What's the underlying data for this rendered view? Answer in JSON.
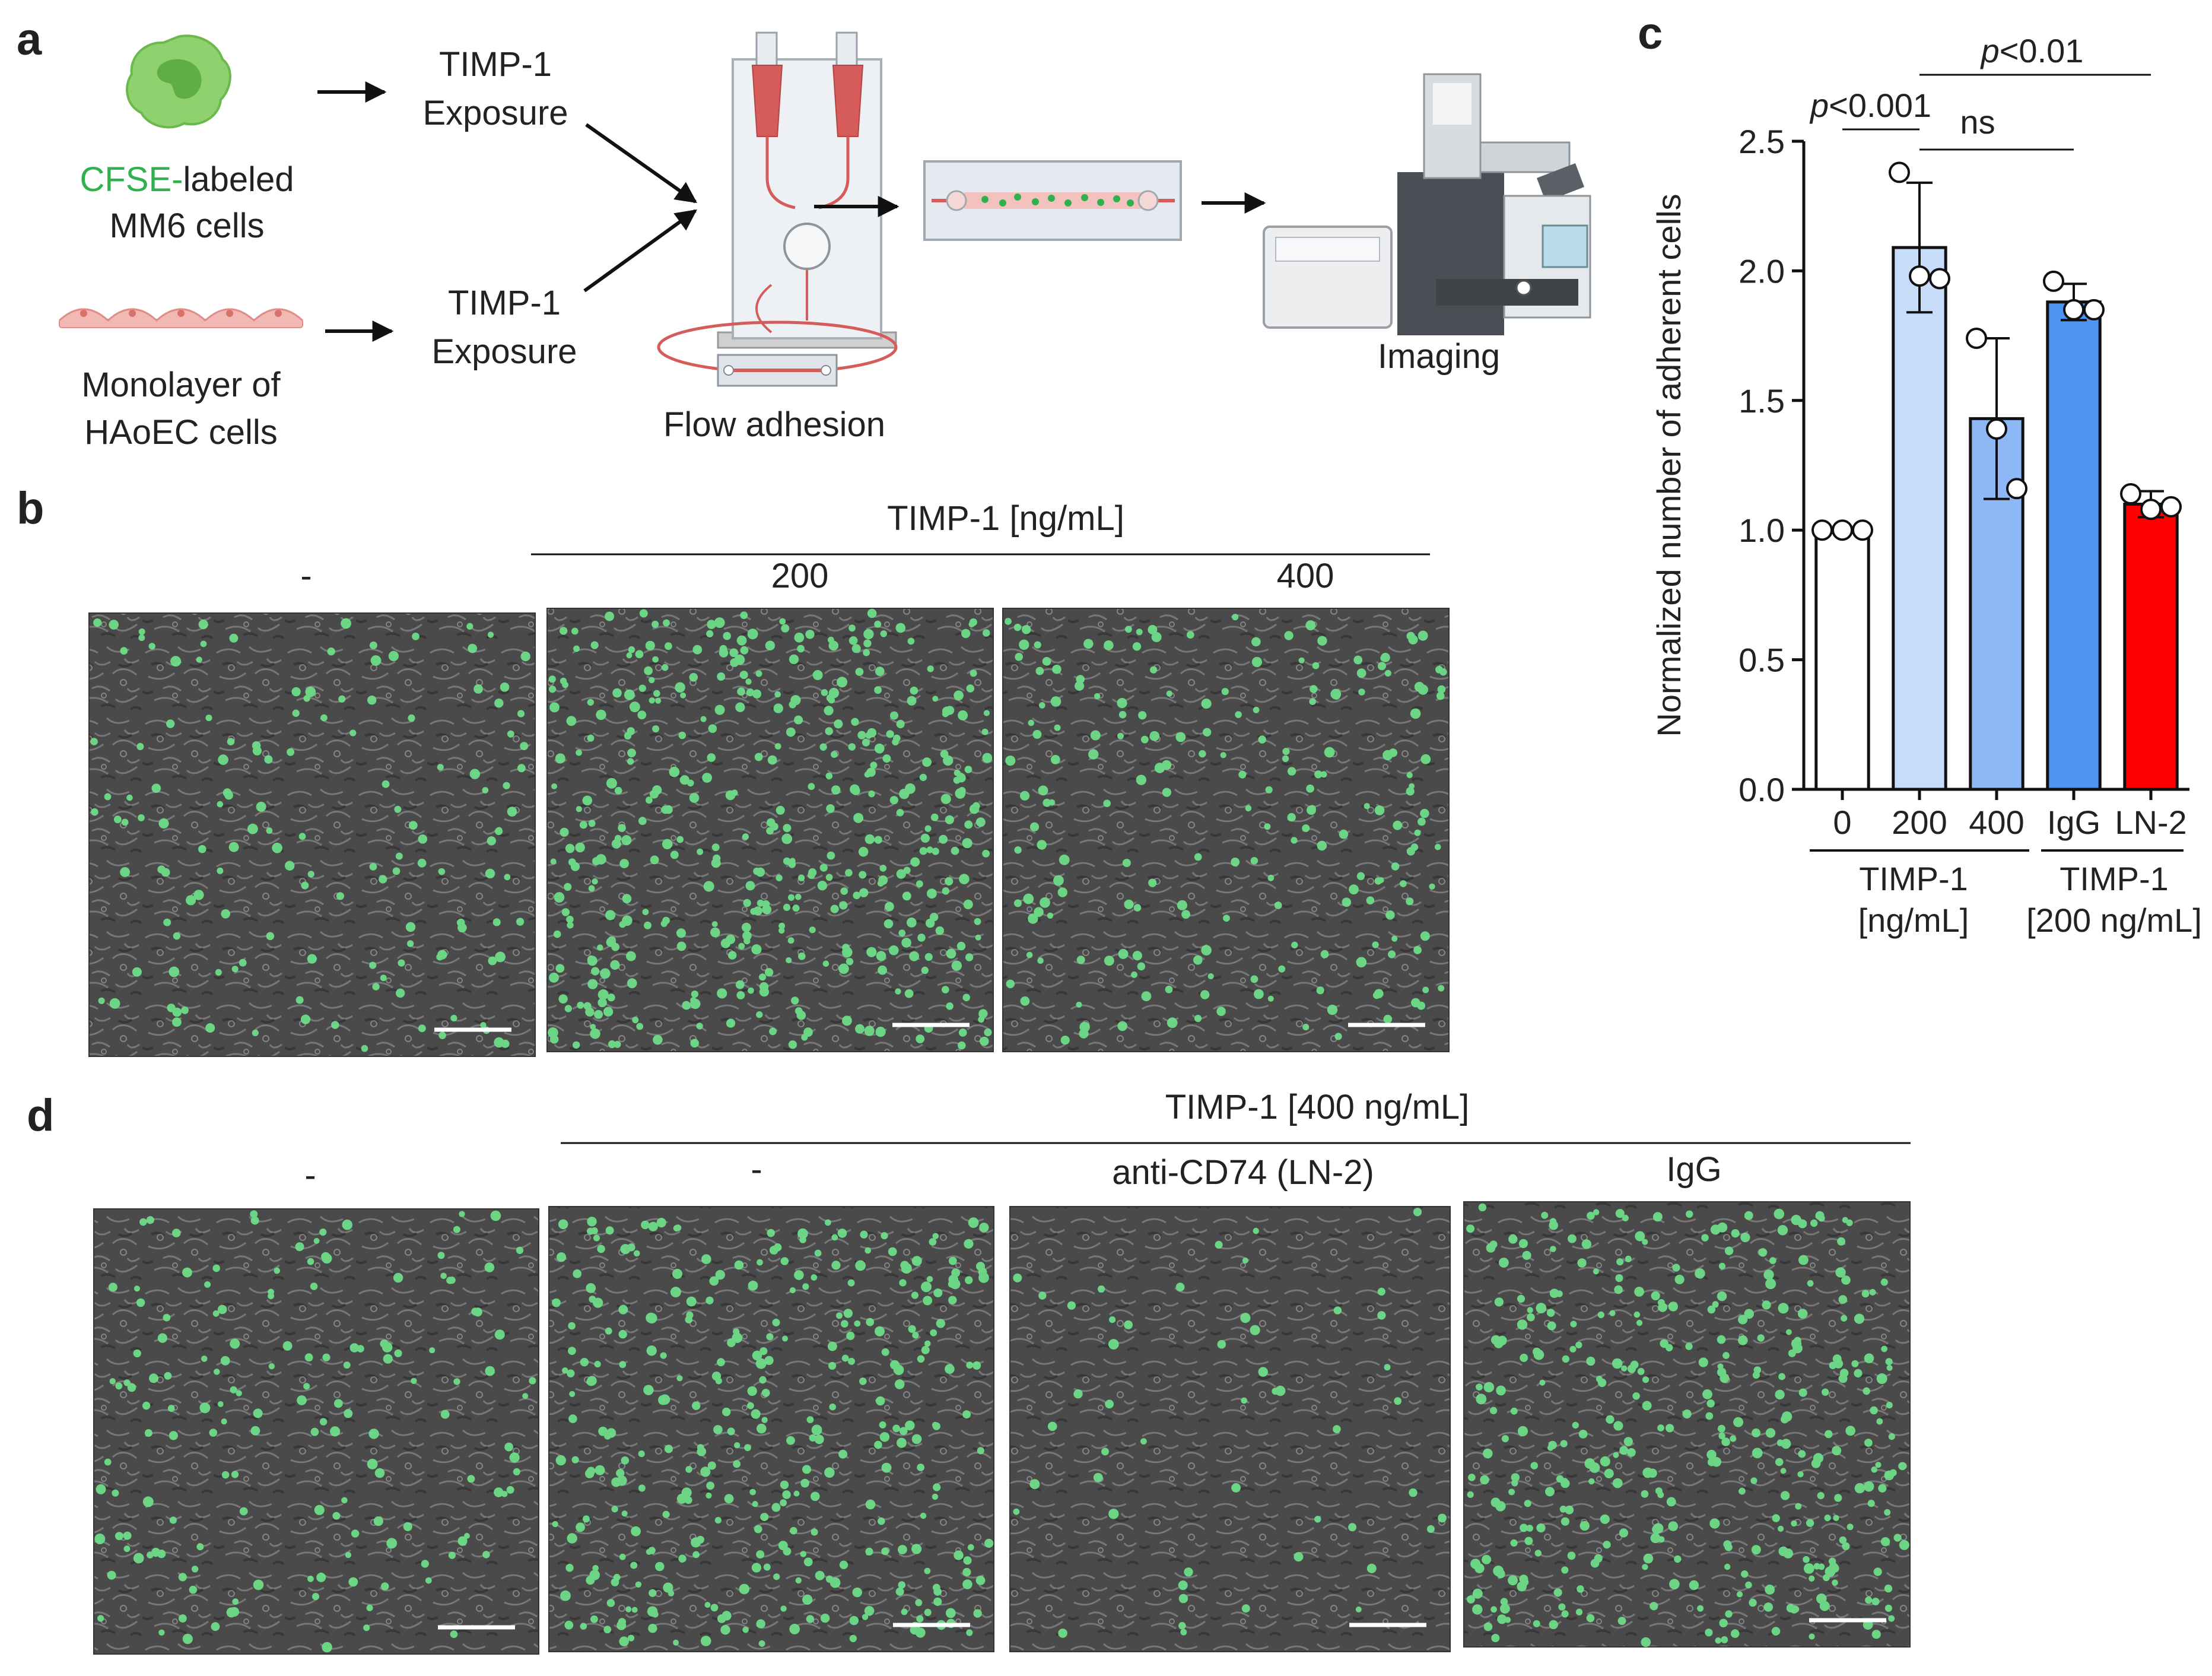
{
  "panel_a": {
    "letter": "a",
    "cells_label_prefix": "CFSE-",
    "cells_label_suffix": "labeled",
    "cells_label_line2": "MM6 cells",
    "monolayer_line1": "Monolayer of",
    "monolayer_line2": "HAoEC cells",
    "exposure1_line1": "TIMP-1",
    "exposure1_line2": "Exposure",
    "exposure2_line1": "TIMP-1",
    "exposure2_line2": "Exposure",
    "flow_label": "Flow adhesion",
    "imaging_label": "Imaging",
    "colors": {
      "cfse": "#2fb24d",
      "cell": "#8fd16f",
      "endothelial": "#f2b8b4",
      "tubing": "#d65c5c"
    },
    "icons": [
      "monocyte-cell-icon",
      "endothelial-monolayer-icon",
      "flow-chamber-icon",
      "flow-channel-slide-icon",
      "microscope-icon"
    ]
  },
  "panel_b": {
    "letter": "b",
    "group_label": "TIMP-1 [ng/mL]",
    "images": [
      {
        "label": "-",
        "density": 140
      },
      {
        "label": "200",
        "density": 420
      },
      {
        "label": "400",
        "density": 200
      }
    ]
  },
  "panel_c": {
    "letter": "c",
    "sig": [
      {
        "label_italic": "p",
        "label_rest": "<0.001"
      },
      {
        "label_italic": "",
        "label_rest": "ns"
      },
      {
        "label_italic": "p",
        "label_rest": "<0.01"
      }
    ],
    "group1_line1": "TIMP-1",
    "group1_line2": "[ng/mL]",
    "group2_line1": "TIMP-1",
    "group2_line2": "[200 ng/mL]"
  },
  "chart_data": {
    "type": "bar",
    "categories": [
      "0",
      "200",
      "400",
      "IgG",
      "LN-2"
    ],
    "values": [
      1.0,
      2.09,
      1.43,
      1.88,
      1.1
    ],
    "error": [
      0.0,
      0.25,
      0.31,
      0.07,
      0.05
    ],
    "points": [
      [
        1.0,
        1.0,
        1.0
      ],
      [
        2.38,
        1.98,
        1.97
      ],
      [
        1.74,
        1.39,
        1.16
      ],
      [
        1.96,
        1.85,
        1.85
      ],
      [
        1.14,
        1.08,
        1.09
      ]
    ],
    "colors": [
      "#ffffff",
      "#c7dcf9",
      "#8db8f5",
      "#4d94f2",
      "#ff0000"
    ],
    "ylabel": "Normalized number of adherent cells",
    "ylim": [
      0,
      2.5
    ],
    "yticks": [
      "0.0",
      "0.5",
      "1.0",
      "1.5",
      "2.0",
      "2.5"
    ],
    "grid": false
  },
  "panel_d": {
    "letter": "d",
    "group_label": "TIMP-1 [400 ng/mL]",
    "images": [
      {
        "label": "-",
        "density": 150
      },
      {
        "label": "-",
        "density": 330
      },
      {
        "label": "anti-CD74 (LN-2)",
        "density": 50
      },
      {
        "label": "IgG",
        "density": 360
      }
    ]
  }
}
